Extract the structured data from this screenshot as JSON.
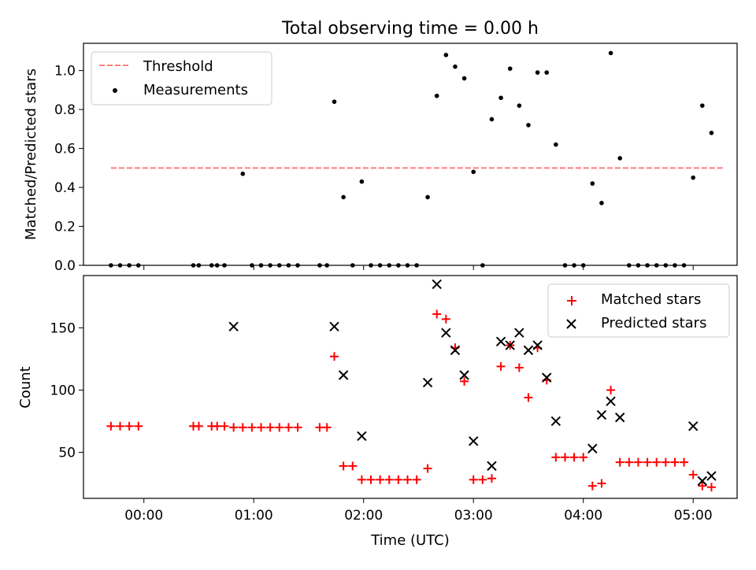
{
  "chart_data": [
    {
      "type": "scatter",
      "title": "Total observing time = 0.00 h",
      "xlabel": "",
      "ylabel": "Matched/Predicted stars",
      "xlim": [
        "23:27",
        "05:24"
      ],
      "ylim": [
        0,
        1.14
      ],
      "yticks": [
        "0.0",
        "0.2",
        "0.4",
        "0.6",
        "0.8",
        "1.0"
      ],
      "legend_position": "upper-left",
      "series": [
        {
          "name": "Threshold",
          "kind": "dashed-line",
          "color": "#ff7f7f",
          "x": [
            "23:42",
            "05:17"
          ],
          "y": [
            0.5,
            0.5
          ]
        },
        {
          "name": "Measurements",
          "kind": "dot",
          "color": "#000000",
          "x": [
            "23:42",
            "23:47",
            "23:52",
            "23:57",
            "00:27",
            "00:30",
            "00:37",
            "00:40",
            "00:44",
            "00:54",
            "00:59",
            "01:04",
            "01:09",
            "01:14",
            "01:19",
            "01:24",
            "01:36",
            "01:40",
            "01:44",
            "01:49",
            "01:54",
            "01:59",
            "02:04",
            "02:09",
            "02:14",
            "02:19",
            "02:24",
            "02:29",
            "02:35",
            "02:40",
            "02:45",
            "02:50",
            "02:55",
            "03:00",
            "03:05",
            "03:10",
            "03:15",
            "03:20",
            "03:25",
            "03:30",
            "03:35",
            "03:40",
            "03:45",
            "03:50",
            "03:55",
            "04:00",
            "04:05",
            "04:10",
            "04:15",
            "04:20",
            "04:25",
            "04:30",
            "04:35",
            "04:40",
            "04:45",
            "04:50",
            "04:55",
            "05:00",
            "05:05",
            "05:10"
          ],
          "y": [
            0,
            0,
            0,
            0,
            0,
            0,
            0,
            0,
            0,
            0.47,
            0,
            0,
            0,
            0,
            0,
            0,
            0,
            0,
            0.84,
            0.35,
            0,
            0.43,
            0,
            0,
            0,
            0,
            0,
            0,
            0.35,
            0.87,
            1.08,
            1.02,
            0.96,
            0.48,
            0,
            0.75,
            0.86,
            1.01,
            0.82,
            0.72,
            0.99,
            0.99,
            0.62,
            0,
            0,
            0,
            0.42,
            0.32,
            1.09,
            0.55,
            0,
            0,
            0,
            0,
            0,
            0,
            0,
            0.45,
            0.82,
            0.68
          ]
        }
      ]
    },
    {
      "type": "scatter",
      "title": "",
      "xlabel": "Time (UTC)",
      "ylabel": "Count",
      "xlim": [
        "23:27",
        "05:24"
      ],
      "ylim": [
        13,
        192
      ],
      "xticks": [
        "00:00",
        "01:00",
        "02:00",
        "03:00",
        "04:00",
        "05:00"
      ],
      "yticks": [
        "50",
        "100",
        "150"
      ],
      "legend_position": "upper-right",
      "series": [
        {
          "name": "Matched stars",
          "kind": "plus",
          "color": "#ff0000",
          "x": [
            "23:42",
            "23:47",
            "23:52",
            "23:57",
            "00:27",
            "00:30",
            "00:37",
            "00:40",
            "00:44",
            "00:49",
            "00:54",
            "00:59",
            "01:04",
            "01:09",
            "01:14",
            "01:19",
            "01:24",
            "01:36",
            "01:40",
            "01:44",
            "01:49",
            "01:54",
            "01:59",
            "02:04",
            "02:09",
            "02:14",
            "02:19",
            "02:24",
            "02:29",
            "02:35",
            "02:40",
            "02:45",
            "02:50",
            "02:55",
            "03:00",
            "03:05",
            "03:10",
            "03:15",
            "03:20",
            "03:25",
            "03:30",
            "03:35",
            "03:40",
            "03:45",
            "03:50",
            "03:55",
            "04:00",
            "04:05",
            "04:10",
            "04:15",
            "04:20",
            "04:25",
            "04:30",
            "04:35",
            "04:40",
            "04:45",
            "04:50",
            "04:55",
            "05:00",
            "05:05",
            "05:10"
          ],
          "y": [
            71,
            71,
            71,
            71,
            71,
            71,
            71,
            71,
            71,
            70,
            70,
            70,
            70,
            70,
            70,
            70,
            70,
            70,
            70,
            127,
            39,
            39,
            28,
            28,
            28,
            28,
            28,
            28,
            28,
            37,
            161,
            157,
            134,
            107,
            28,
            28,
            29,
            119,
            136,
            118,
            94,
            134,
            108,
            46,
            46,
            46,
            46,
            23,
            25,
            100,
            42,
            42,
            42,
            42,
            42,
            42,
            42,
            42,
            32,
            23,
            22
          ]
        },
        {
          "name": "Predicted stars",
          "kind": "x",
          "color": "#000000",
          "x": [
            "00:49",
            "01:44",
            "01:49",
            "01:59",
            "02:35",
            "02:40",
            "02:45",
            "02:50",
            "02:55",
            "03:00",
            "03:10",
            "03:15",
            "03:20",
            "03:25",
            "03:30",
            "03:35",
            "03:40",
            "03:45",
            "04:05",
            "04:10",
            "04:15",
            "04:20",
            "05:00",
            "05:05",
            "05:10"
          ],
          "y": [
            151,
            151,
            112,
            63,
            106,
            185,
            146,
            132,
            112,
            59,
            39,
            139,
            136,
            146,
            132,
            136,
            110,
            75,
            53,
            80,
            91,
            78,
            71,
            27,
            31
          ]
        }
      ]
    }
  ]
}
